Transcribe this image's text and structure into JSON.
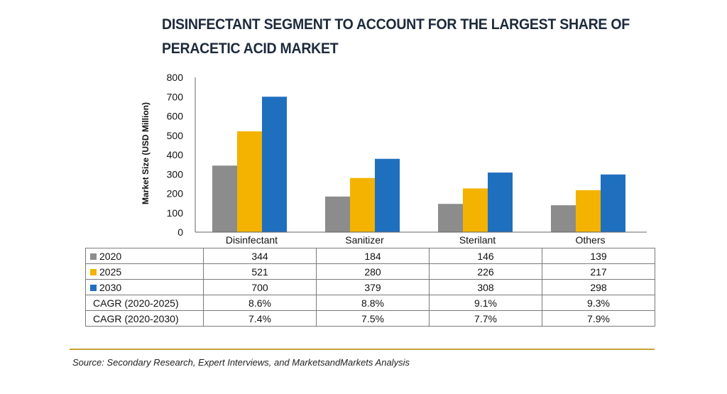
{
  "chart_data": {
    "type": "bar",
    "title": "DISINFECTANT SEGMENT TO ACCOUNT FOR THE LARGEST SHARE OF PERACETIC ACID MARKET",
    "ylabel": "Market Size (USD Million)",
    "xlabel": "",
    "ylim": [
      0,
      800
    ],
    "yticks": [
      0,
      100,
      200,
      300,
      400,
      500,
      600,
      700,
      800
    ],
    "categories": [
      "Disinfectant",
      "Sanitizer",
      "Sterilant",
      "Others"
    ],
    "series": [
      {
        "name": "2020",
        "color": "#8c8c8c",
        "values": [
          344,
          184,
          146,
          139
        ]
      },
      {
        "name": "2025",
        "color": "#f3b300",
        "values": [
          521,
          280,
          226,
          217
        ]
      },
      {
        "name": "2030",
        "color": "#1f6fbf",
        "values": [
          700,
          379,
          308,
          298
        ]
      }
    ],
    "table_rows": [
      {
        "label": "CAGR (2020-2025)",
        "values": [
          "8.6%",
          "8.8%",
          "9.1%",
          "9.3%"
        ]
      },
      {
        "label": "CAGR (2020-2030)",
        "values": [
          "7.4%",
          "7.5%",
          "7.7%",
          "7.9%"
        ]
      }
    ],
    "grid": false,
    "legend": "table-left"
  },
  "source": "Source: Secondary Research, Expert Interviews, and MarketsandMarkets Analysis"
}
